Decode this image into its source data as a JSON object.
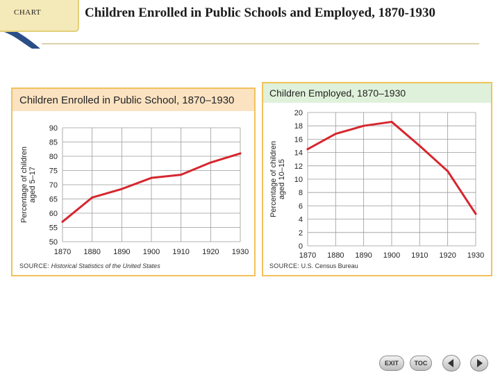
{
  "header": {
    "tab_label": "CHART",
    "title": "Children Enrolled in Public Schools and Employed, 1870-1930"
  },
  "colors": {
    "line": "#d6262e",
    "grid": "#9a9a9a",
    "panel_border": "#f2c15a",
    "left_header_bg": "#fbe3c2",
    "right_header_bg": "#dff1da"
  },
  "chart_data": [
    {
      "type": "line",
      "title": "Children Enrolled in Public School, 1870–1930",
      "xlabel": "",
      "ylabel_line1": "Percentage of children",
      "ylabel_line2": "aged 5–17",
      "x": [
        1870,
        1880,
        1890,
        1900,
        1910,
        1920,
        1930
      ],
      "values": [
        57,
        65.5,
        68.5,
        72.4,
        73.5,
        77.8,
        81
      ],
      "xlim": [
        1870,
        1930
      ],
      "ylim": [
        50,
        90
      ],
      "yticks": [
        50,
        55,
        60,
        65,
        70,
        75,
        80,
        85,
        90
      ],
      "xticks": [
        "1870",
        "1880",
        "1890",
        "1900",
        "1910",
        "1920",
        "1930"
      ],
      "grid": true,
      "source_label": "SOURCE:",
      "source_text": "Historical Statistics of the United States"
    },
    {
      "type": "line",
      "title": "Children Employed, 1870–1930",
      "xlabel": "",
      "ylabel_line1": "Percentage of children",
      "ylabel_line2": "aged 10–15",
      "x": [
        1870,
        1880,
        1890,
        1900,
        1910,
        1920,
        1930
      ],
      "values": [
        14.5,
        16.8,
        18,
        18.6,
        15,
        11.2,
        4.8
      ],
      "xlim": [
        1870,
        1930
      ],
      "ylim": [
        0,
        20
      ],
      "yticks": [
        0,
        2,
        4,
        6,
        8,
        10,
        12,
        14,
        16,
        18,
        20
      ],
      "xticks": [
        "1870",
        "1880",
        "1890",
        "1900",
        "1910",
        "1920",
        "1930"
      ],
      "grid": true,
      "source_label": "SOURCE:",
      "source_text": "U.S. Census Bureau"
    }
  ],
  "nav": {
    "exit_label": "EXIT",
    "toc_label": "TOC",
    "prev_icon": "prev-arrow-icon",
    "next_icon": "next-arrow-icon"
  }
}
